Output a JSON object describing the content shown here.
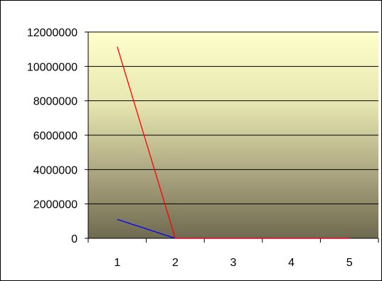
{
  "chart_data": {
    "type": "line",
    "title": "",
    "xlabel": "",
    "ylabel": "",
    "categories": [
      "1",
      "2",
      "3",
      "4",
      "5"
    ],
    "ylim": [
      0,
      12000000
    ],
    "y_ticks": [
      0,
      2000000,
      4000000,
      6000000,
      8000000,
      10000000,
      12000000
    ],
    "y_tick_labels": [
      "0",
      "2000000",
      "4000000",
      "6000000",
      "8000000",
      "10000000",
      "12000000"
    ],
    "series": [
      {
        "values": [
          1100000,
          0,
          0,
          0,
          0
        ],
        "color": "#0000ff"
      },
      {
        "values": [
          11150000,
          0,
          0,
          0,
          0
        ],
        "color": "#ff0000"
      }
    ],
    "grid": true,
    "legend": "none",
    "plot_background": "yellow-to-olive gradient"
  }
}
